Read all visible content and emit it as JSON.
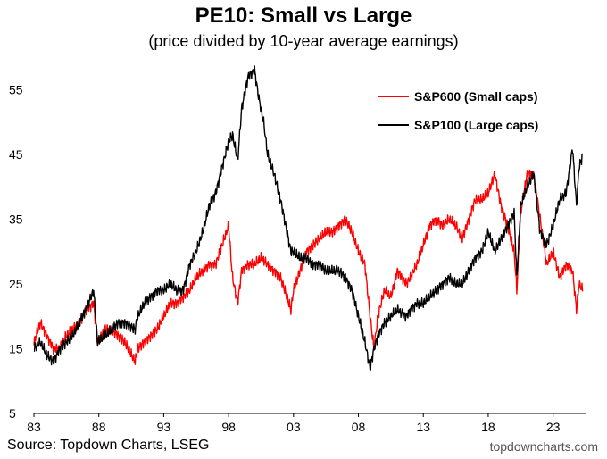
{
  "chart_data": {
    "type": "line",
    "title": "PE10: Small vs Large",
    "subtitle": "(price divided by 10-year average earnings)",
    "xlabel": "",
    "ylabel": "",
    "xlim": [
      1983,
      2025.5
    ],
    "ylim": [
      5,
      60
    ],
    "yticks": [
      5,
      15,
      25,
      35,
      45,
      55
    ],
    "xticks": [
      1983,
      1988,
      1993,
      1998,
      2003,
      2008,
      2013,
      2018,
      2023
    ],
    "xtick_labels": [
      "83",
      "88",
      "93",
      "98",
      "03",
      "08",
      "13",
      "18",
      "23"
    ],
    "grid": false,
    "legend_position": "top-right",
    "series": [
      {
        "name": "S&P600 (Small caps)",
        "color": "#ff0000",
        "x": [
          1983.0,
          1983.5,
          1984.0,
          1984.5,
          1985.0,
          1985.5,
          1986.0,
          1986.5,
          1987.0,
          1987.6,
          1987.9,
          1988.5,
          1989.0,
          1989.5,
          1990.0,
          1990.8,
          1991.0,
          1991.5,
          1992.0,
          1992.5,
          1993.0,
          1993.5,
          1994.0,
          1994.5,
          1995.0,
          1995.5,
          1996.0,
          1996.5,
          1997.0,
          1997.5,
          1998.0,
          1998.3,
          1998.7,
          1999.0,
          1999.5,
          2000.0,
          2000.5,
          2001.0,
          2001.5,
          2002.0,
          2002.5,
          2002.8,
          2003.0,
          2003.5,
          2004.0,
          2004.5,
          2005.0,
          2005.5,
          2006.0,
          2006.5,
          2007.0,
          2007.5,
          2008.0,
          2008.5,
          2008.9,
          2009.2,
          2009.5,
          2010.0,
          2010.5,
          2011.0,
          2011.7,
          2012.0,
          2012.5,
          2013.0,
          2013.5,
          2014.0,
          2014.5,
          2015.0,
          2015.5,
          2016.0,
          2016.5,
          2017.0,
          2017.5,
          2018.0,
          2018.5,
          2019.0,
          2019.5,
          2020.0,
          2020.2,
          2020.5,
          2021.0,
          2021.5,
          2022.0,
          2022.5,
          2023.0,
          2023.5,
          2024.0,
          2024.5,
          2024.8,
          2025.0,
          2025.3
        ],
        "values": [
          16,
          19,
          17,
          15,
          15,
          17,
          18,
          19,
          21,
          22,
          16,
          18,
          18,
          17,
          16,
          13,
          15,
          16,
          17,
          18,
          20,
          22,
          22,
          23,
          24,
          26,
          27,
          28,
          28,
          31,
          34,
          26,
          22,
          27,
          28,
          28,
          29,
          28,
          27,
          26,
          23,
          21,
          24,
          27,
          30,
          31,
          32,
          33,
          33,
          34,
          35,
          33,
          30,
          28,
          20,
          15,
          20,
          24,
          23,
          27,
          25,
          26,
          28,
          31,
          34,
          35,
          34,
          35,
          34,
          32,
          35,
          38,
          38,
          39,
          42,
          37,
          34,
          30,
          24,
          36,
          42,
          42,
          35,
          28,
          30,
          26,
          28,
          27,
          21,
          25,
          24
        ]
      },
      {
        "name": "S&P100 (Large caps)",
        "color": "#000000",
        "x": [
          1983.0,
          1983.5,
          1984.0,
          1984.5,
          1985.0,
          1985.5,
          1986.0,
          1986.5,
          1987.0,
          1987.6,
          1987.9,
          1988.5,
          1989.0,
          1989.5,
          1990.0,
          1990.8,
          1991.0,
          1991.5,
          1992.0,
          1992.5,
          1993.0,
          1993.5,
          1994.0,
          1994.5,
          1995.0,
          1995.5,
          1996.0,
          1996.5,
          1997.0,
          1997.5,
          1998.0,
          1998.3,
          1998.7,
          1999.0,
          1999.5,
          2000.0,
          2000.3,
          2000.7,
          2001.0,
          2001.5,
          2002.0,
          2002.5,
          2002.8,
          2003.0,
          2003.5,
          2004.0,
          2004.5,
          2005.0,
          2005.5,
          2006.0,
          2006.5,
          2007.0,
          2007.5,
          2008.0,
          2008.5,
          2008.9,
          2009.2,
          2009.5,
          2010.0,
          2010.5,
          2011.0,
          2011.7,
          2012.0,
          2012.5,
          2013.0,
          2013.5,
          2014.0,
          2014.5,
          2015.0,
          2015.5,
          2016.0,
          2016.5,
          2017.0,
          2017.5,
          2018.0,
          2018.5,
          2019.0,
          2019.5,
          2020.0,
          2020.2,
          2020.5,
          2021.0,
          2021.5,
          2022.0,
          2022.5,
          2023.0,
          2023.5,
          2024.0,
          2024.5,
          2024.8,
          2025.0,
          2025.3
        ],
        "values": [
          15,
          16,
          14,
          13,
          15,
          16,
          17,
          19,
          21,
          24,
          16,
          17,
          18,
          19,
          19,
          18,
          20,
          22,
          23,
          24,
          24,
          25,
          24,
          24,
          28,
          30,
          33,
          37,
          39,
          43,
          47,
          48,
          44,
          52,
          57,
          58,
          54,
          50,
          45,
          42,
          38,
          33,
          30,
          30,
          29,
          29,
          28,
          28,
          27,
          27,
          27,
          26,
          24,
          20,
          16,
          12,
          15,
          17,
          19,
          20,
          21,
          20,
          21,
          22,
          22,
          23,
          24,
          25,
          26,
          25,
          25,
          27,
          29,
          30,
          33,
          30,
          32,
          34,
          36,
          26,
          37,
          40,
          42,
          33,
          31,
          34,
          38,
          39,
          46,
          37,
          43,
          45
        ]
      }
    ]
  },
  "footer": {
    "source": "Source: Topdown Charts, LSEG",
    "brand": "topdowncharts.com"
  }
}
